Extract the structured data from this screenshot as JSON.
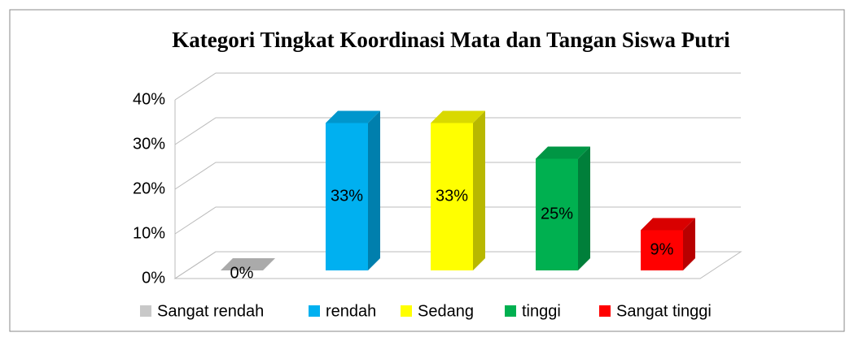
{
  "chart_data": {
    "type": "bar3d",
    "title": "Kategori Tingkat Koordinasi Mata dan Tangan Siswa Putri",
    "categories": [
      "Sangat rendah",
      "rendah",
      "Sedang",
      "tinggi",
      "Sangat tinggi"
    ],
    "values": [
      0,
      33,
      33,
      25,
      9
    ],
    "value_labels": [
      "0%",
      "33%",
      "33%",
      "25%",
      "9%"
    ],
    "colors": [
      "#c8c8c8",
      "#00b0f0",
      "#ffff00",
      "#00b050",
      "#ff0000"
    ],
    "ylim": [
      0,
      40
    ],
    "yticks": [
      {
        "value": 0,
        "label": "0%"
      },
      {
        "value": 10,
        "label": "10%"
      },
      {
        "value": 20,
        "label": "20%"
      },
      {
        "value": 30,
        "label": "30%"
      },
      {
        "value": 40,
        "label": "40%"
      }
    ],
    "grid": true,
    "legend": "bottom"
  }
}
